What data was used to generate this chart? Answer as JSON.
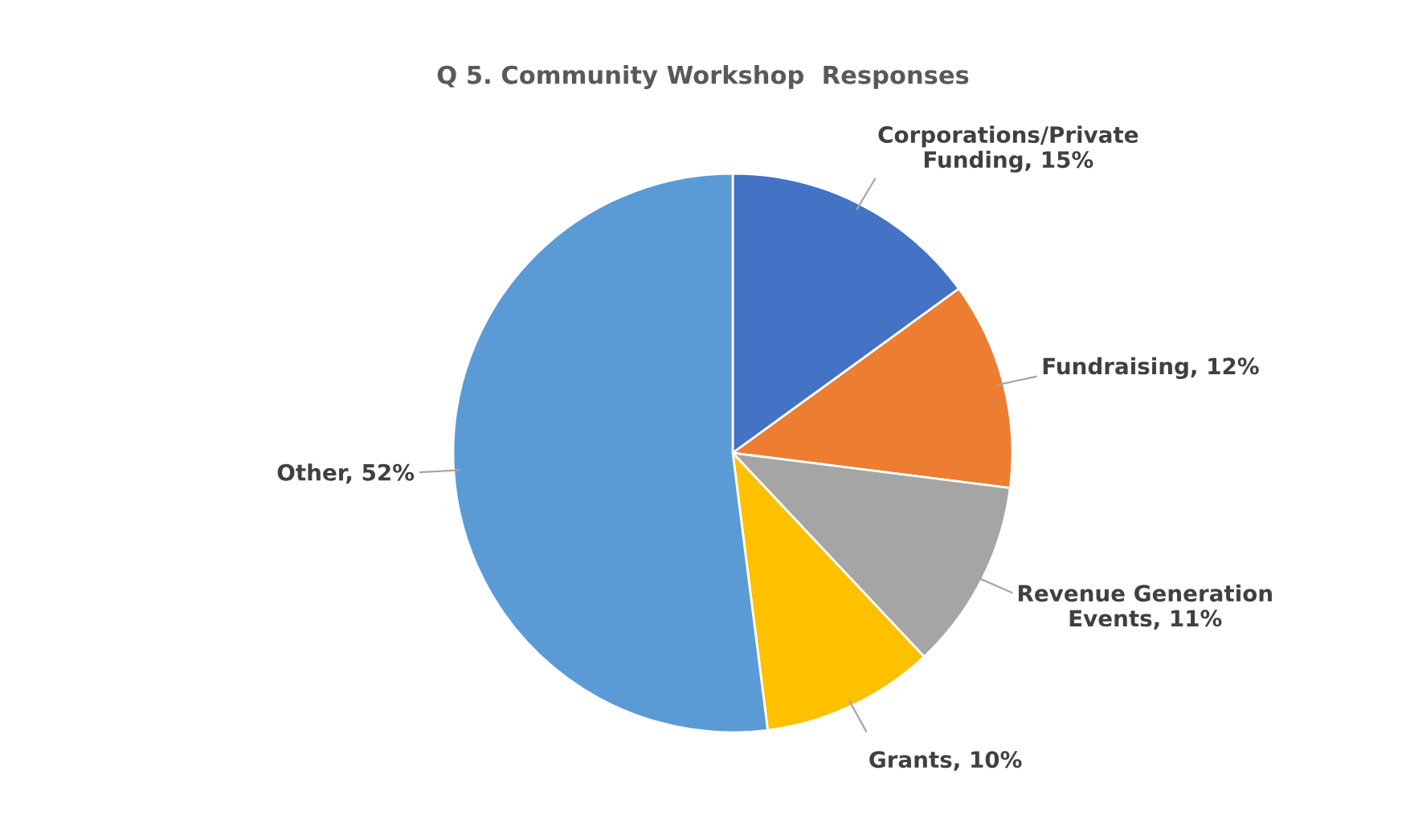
{
  "chart_data": {
    "type": "pie",
    "title": "Q 5. Community Workshop  Responses",
    "categories": [
      "Corporations/Private Funding",
      "Fundraising",
      "Revenue Generation Events",
      "Grants",
      "Other"
    ],
    "values": [
      15,
      12,
      11,
      10,
      52
    ],
    "colors": [
      "#4472c4",
      "#ed7d31",
      "#a5a5a5",
      "#ffc000",
      "#5b9bd5"
    ],
    "value_labels": [
      "15%",
      "12%",
      "11%",
      "10%",
      "52%"
    ],
    "legend": false
  }
}
